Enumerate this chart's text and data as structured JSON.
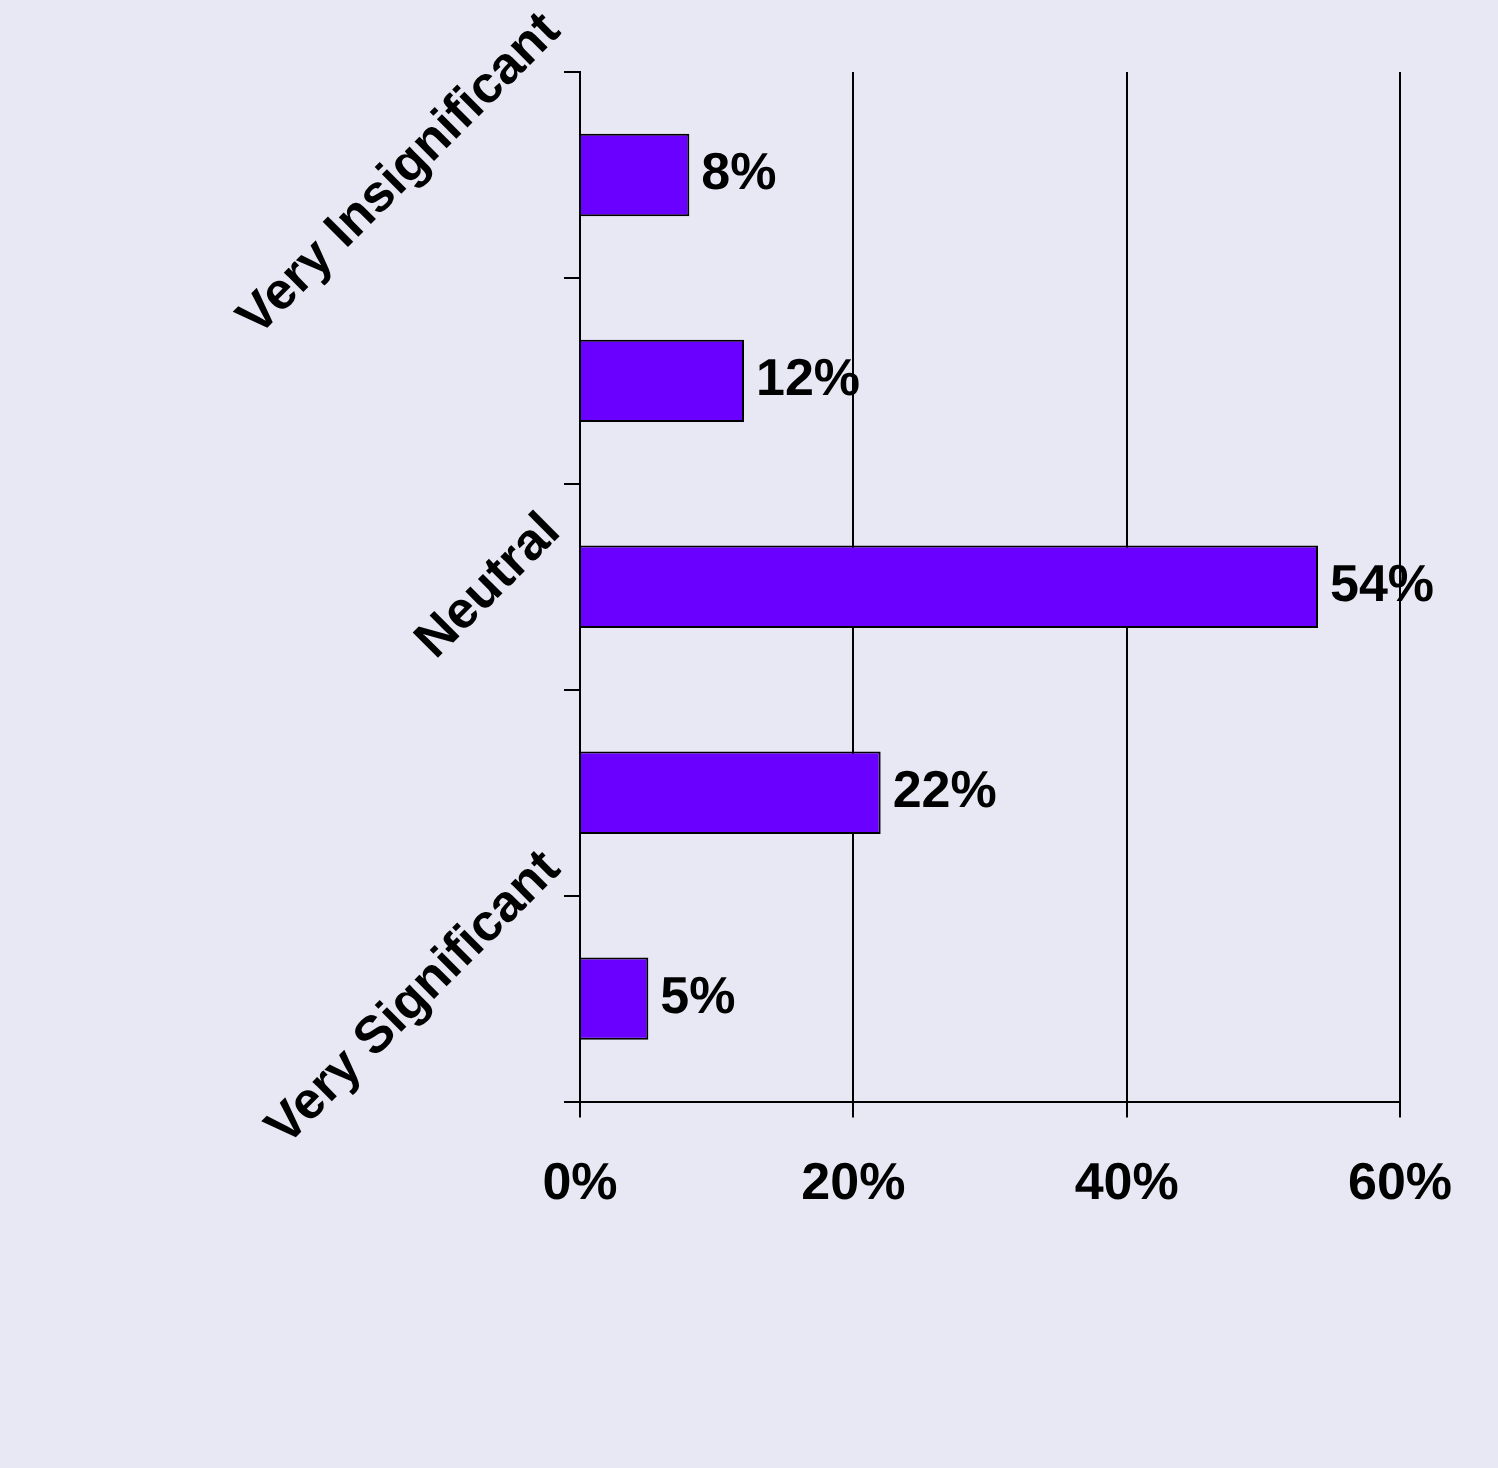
{
  "chart_data": {
    "type": "bar",
    "orientation": "horizontal",
    "categories": [
      "Very Insignificant",
      null,
      "Neutral",
      null,
      "Very Significant"
    ],
    "values": [
      8,
      12,
      54,
      22,
      5
    ],
    "color": "#6a00ff",
    "xlim": [
      0,
      60
    ],
    "xticks": [
      {
        "value": 0,
        "label": "0%"
      },
      {
        "value": 20,
        "label": "20%"
      },
      {
        "value": 40,
        "label": "40%"
      },
      {
        "value": 60,
        "label": "60%"
      }
    ],
    "grid": "x",
    "value_labels": [
      "8%",
      "12%",
      "54%",
      "22%",
      "5%"
    ]
  }
}
